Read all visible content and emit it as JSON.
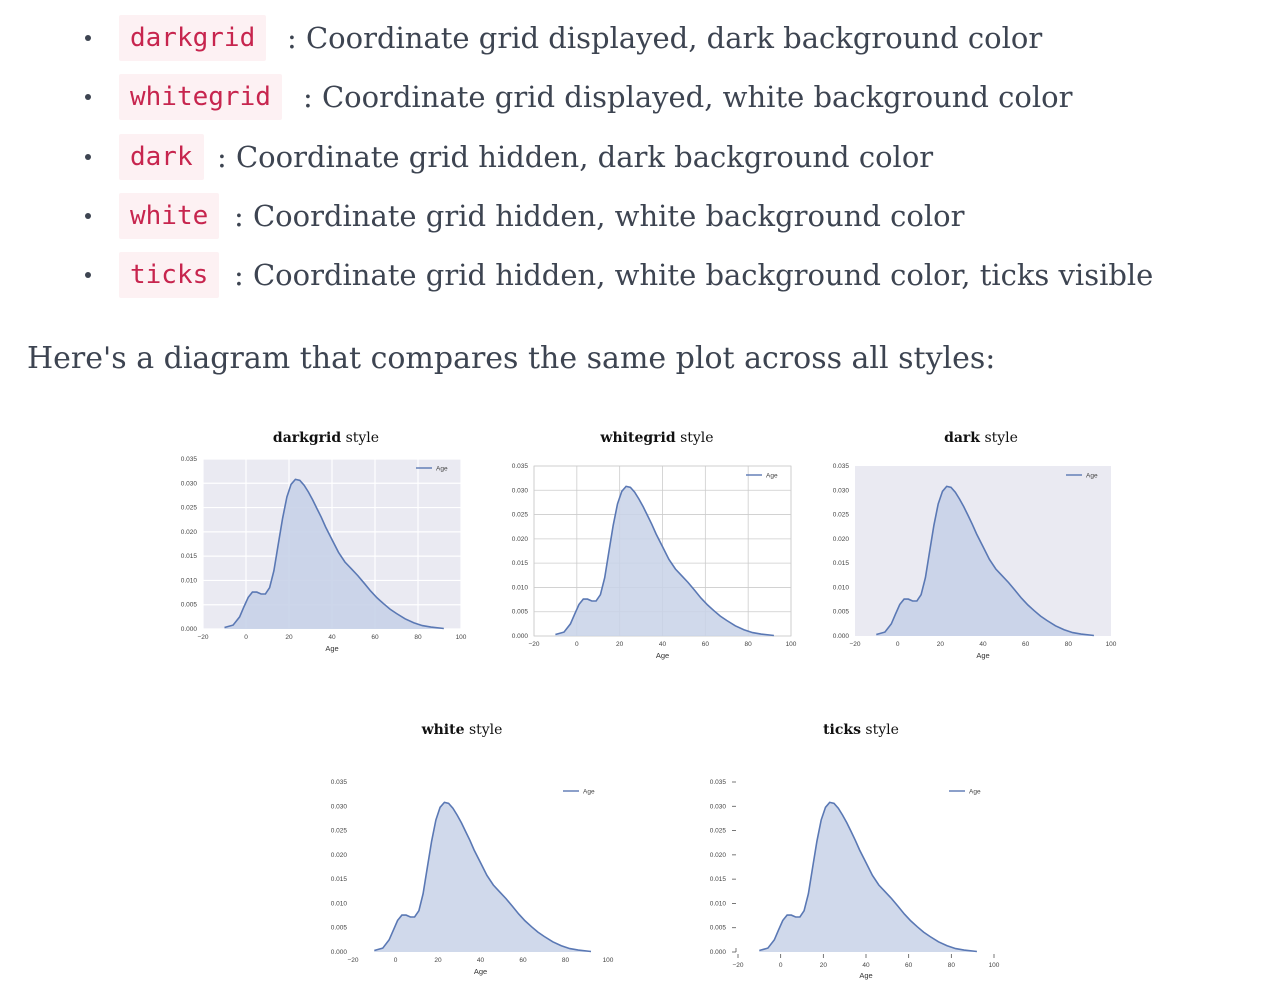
{
  "bullets": [
    {
      "code": "darkgrid",
      "text": ": Coordinate grid displayed, dark background color"
    },
    {
      "code": "whitegrid",
      "text": ": Coordinate grid displayed, white background color"
    },
    {
      "code": "dark",
      "text": ": Coordinate grid hidden, dark background color"
    },
    {
      "code": "white",
      "text": ": Coordinate grid hidden, white background color"
    },
    {
      "code": "ticks",
      "text": ": Coordinate grid hidden, white background color, ticks visible"
    }
  ],
  "intro": "Here's a diagram that compares the same plot across all styles:",
  "panels": [
    {
      "title_bold": "darkgrid",
      "title_rest": " style",
      "style": "darkgrid"
    },
    {
      "title_bold": "whitegrid",
      "title_rest": " style",
      "style": "whitegrid"
    },
    {
      "title_bold": "dark",
      "title_rest": " style",
      "style": "dark"
    },
    {
      "title_bold": "white",
      "title_rest": " style",
      "style": "white"
    },
    {
      "title_bold": "ticks",
      "title_rest": " style",
      "style": "ticks"
    }
  ],
  "chart_data": {
    "type": "area",
    "xlabel": "Age",
    "ylabel": "",
    "legend": [
      "Age"
    ],
    "legend_position": "top-right",
    "xlim": [
      -20,
      100
    ],
    "ylim": [
      0,
      0.035
    ],
    "xticks": [
      "−20",
      "0",
      "20",
      "40",
      "60",
      "80",
      "100"
    ],
    "yticks": [
      "0.000",
      "0.005",
      "0.010",
      "0.015",
      "0.020",
      "0.025",
      "0.030",
      "0.035"
    ],
    "colors": {
      "line": "#5a78b4",
      "fill": "#c8d2e8",
      "dark_bg": "#eaeaf2",
      "grid_on_dark": "#ffffff",
      "grid_on_white": "#cccccc"
    },
    "series": [
      {
        "name": "Age",
        "x": [
          -10,
          -6,
          -3,
          -1,
          1,
          3,
          5,
          7,
          9,
          11,
          13,
          15,
          17,
          19,
          21,
          23,
          25,
          27,
          29,
          31,
          33,
          35,
          37,
          40,
          43,
          46,
          49,
          52,
          55,
          58,
          61,
          64,
          67,
          70,
          74,
          78,
          82,
          86,
          90,
          92
        ],
        "y": [
          0.0003,
          0.0008,
          0.0025,
          0.0045,
          0.0065,
          0.0076,
          0.0076,
          0.0072,
          0.0072,
          0.0085,
          0.012,
          0.0175,
          0.0228,
          0.0272,
          0.0298,
          0.0308,
          0.0306,
          0.0296,
          0.0282,
          0.0266,
          0.0248,
          0.023,
          0.021,
          0.0184,
          0.0158,
          0.0138,
          0.0124,
          0.011,
          0.0094,
          0.0078,
          0.0064,
          0.0052,
          0.0041,
          0.0032,
          0.0021,
          0.0013,
          0.0007,
          0.0004,
          0.0002,
          0.0001
        ]
      }
    ]
  }
}
